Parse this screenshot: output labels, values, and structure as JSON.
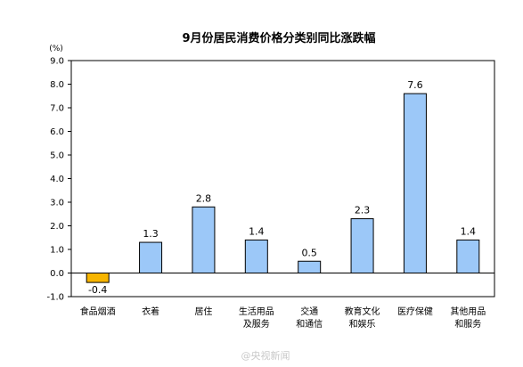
{
  "chart_data": {
    "type": "bar",
    "title": "9月份居民消费价格分类别同比涨跌幅",
    "unit": "(%)",
    "categories": [
      [
        "食品烟酒"
      ],
      [
        "衣着"
      ],
      [
        "居住"
      ],
      [
        "生活用品",
        "及服务"
      ],
      [
        "交通",
        "和通信"
      ],
      [
        "教育文化",
        "和娱乐"
      ],
      [
        "医疗保健"
      ],
      [
        "其他用品",
        "和服务"
      ]
    ],
    "values": [
      -0.4,
      1.3,
      2.8,
      1.4,
      0.5,
      2.3,
      7.6,
      1.4
    ],
    "value_labels": [
      "-0.4",
      "1.3",
      "2.8",
      "1.4",
      "0.5",
      "2.3",
      "7.6",
      "1.4"
    ],
    "ylim": [
      -1.0,
      9.0
    ],
    "yticks": [
      -1.0,
      0.0,
      1.0,
      2.0,
      3.0,
      4.0,
      5.0,
      6.0,
      7.0,
      8.0,
      9.0
    ],
    "ytick_labels": [
      "-1.0",
      "0.0",
      "1.0",
      "2.0",
      "3.0",
      "4.0",
      "5.0",
      "6.0",
      "7.0",
      "8.0",
      "9.0"
    ],
    "grid": false,
    "legend": false,
    "colors": {
      "positive_fill": "#9cc8f8",
      "negative_fill": "#f7b500",
      "bar_stroke": "#000000",
      "axis": "#000000"
    }
  },
  "watermark": {
    "text": "@央视新闻"
  }
}
